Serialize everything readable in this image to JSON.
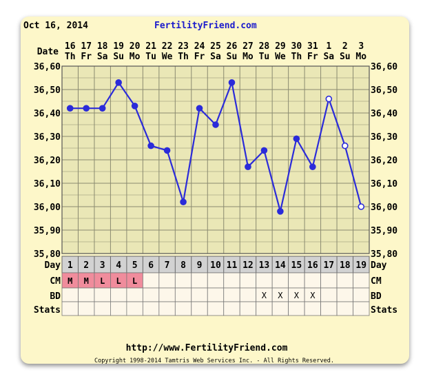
{
  "header": {
    "date": "Oct 16, 2014",
    "site": "FertilityFriend.com"
  },
  "rows": {
    "date_label": "Date",
    "day_label": "Day",
    "cm_label": "CM",
    "bd_label": "BD",
    "stats_label": "Stats"
  },
  "footer": {
    "url": "http://www.FertilityFriend.com",
    "copyright": "Copyright 1998-2014 Tamtris Web Services Inc. - All Rights Reserved."
  },
  "colors": {
    "line": "#2b2bd9",
    "grid": "#8a8a70",
    "cm_fill": "#f08c9c",
    "site_link": "#1a1acc"
  },
  "chart_data": {
    "type": "line",
    "ylim": [
      35.8,
      36.6
    ],
    "y_ticks": [
      "36,60",
      "36,50",
      "36,40",
      "36,30",
      "36,20",
      "36,10",
      "36,00",
      "35,90",
      "35,80"
    ],
    "cycle_days": [
      "1",
      "2",
      "3",
      "4",
      "5",
      "6",
      "7",
      "8",
      "9",
      "10",
      "11",
      "12",
      "13",
      "14",
      "15",
      "16",
      "17",
      "18",
      "19"
    ],
    "dates": [
      "16",
      "17",
      "18",
      "19",
      "20",
      "21",
      "22",
      "23",
      "24",
      "25",
      "26",
      "27",
      "28",
      "29",
      "30",
      "31",
      "1",
      "2",
      "3"
    ],
    "weekdays": [
      "Th",
      "Fr",
      "Sa",
      "Su",
      "Mo",
      "Tu",
      "We",
      "Th",
      "Fr",
      "Sa",
      "Su",
      "Mo",
      "Tu",
      "We",
      "Th",
      "Fr",
      "Sa",
      "Su",
      "Mo"
    ],
    "temps": [
      36.42,
      36.42,
      36.42,
      36.53,
      36.43,
      36.26,
      36.24,
      36.02,
      36.42,
      36.35,
      36.53,
      36.17,
      36.24,
      35.98,
      36.29,
      36.17,
      36.46,
      36.26,
      36.0
    ],
    "hollow_points": [
      17,
      18,
      19
    ],
    "cm": [
      "M",
      "M",
      "L",
      "L",
      "L",
      "",
      "",
      "",
      "",
      "",
      "",
      "",
      "",
      "",
      "",
      "",
      "",
      "",
      ""
    ],
    "bd": [
      "",
      "",
      "",
      "",
      "",
      "",
      "",
      "",
      "",
      "",
      "",
      "",
      "X",
      "X",
      "X",
      "X",
      "",
      "",
      ""
    ]
  }
}
